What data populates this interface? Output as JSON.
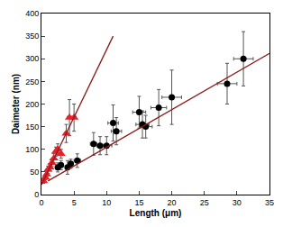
{
  "chart_data": {
    "type": "scatter",
    "x_label": "Length (μm)",
    "y_label": "Daimeter (nm)",
    "xlim": [
      0,
      35
    ],
    "xticks": [
      0,
      5,
      10,
      15,
      20,
      25,
      30,
      35
    ],
    "ylim": [
      0,
      400
    ],
    "yticks": [
      0,
      50,
      100,
      150,
      200,
      250,
      300,
      350,
      400
    ],
    "grid": false,
    "series": [
      {
        "type": "scatter",
        "color": "#e8202a",
        "marker": "triangle-up",
        "x": [
          0.3,
          0.6,
          0.8,
          1.0,
          1.3,
          1.6,
          1.9,
          2.2,
          2.5,
          3.0,
          3.8,
          4.3,
          5.0
        ],
        "values": [
          30,
          38,
          45,
          55,
          60,
          70,
          80,
          95,
          100,
          90,
          135,
          170,
          170
        ],
        "error_y": [
          5,
          5,
          5,
          8,
          8,
          8,
          10,
          10,
          12,
          10,
          20,
          40,
          30
        ],
        "error_x": [
          0.1,
          0.1,
          0.1,
          0.1,
          0.1,
          0.1,
          0.1,
          0.2,
          0.2,
          0.2,
          0.2,
          0.3,
          0.3
        ]
      },
      {
        "type": "scatter",
        "color": "#000000",
        "marker": "circle",
        "x": [
          2.5,
          3,
          4,
          4.5,
          5.5,
          8,
          9,
          10,
          11,
          11.5,
          15,
          15.5,
          16,
          18,
          20,
          28.5,
          31
        ],
        "values": [
          60,
          65,
          60,
          68,
          75,
          112,
          108,
          108,
          158,
          140,
          182,
          155,
          150,
          192,
          215,
          245,
          300
        ],
        "error_y": [
          10,
          10,
          15,
          10,
          15,
          25,
          20,
          20,
          40,
          30,
          35,
          30,
          25,
          40,
          60,
          45,
          60
        ],
        "error_x": [
          0.3,
          0.3,
          0.3,
          0.3,
          0.5,
          0.5,
          0.5,
          0.8,
          0.8,
          0.8,
          1,
          1,
          1,
          1.2,
          1.5,
          1.5,
          1.5
        ]
      },
      {
        "type": "line",
        "color": "#8b1a1a",
        "line_style": "solid",
        "x": [
          0,
          11
        ],
        "values": [
          22,
          350
        ]
      },
      {
        "type": "line",
        "color": "#8b1a1a",
        "line_style": "solid",
        "x": [
          1,
          35
        ],
        "values": [
          30,
          312
        ]
      }
    ]
  }
}
